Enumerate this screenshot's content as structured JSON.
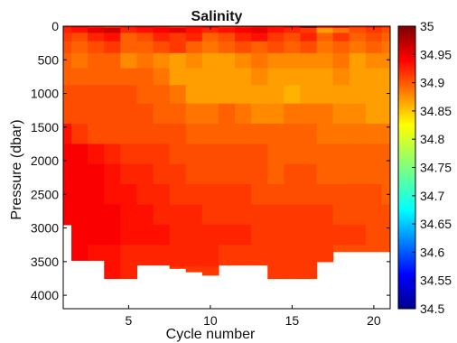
{
  "chart_data": {
    "type": "heatmap",
    "title": "Salinity",
    "xlabel": "Cycle number",
    "ylabel": "Pressure (dbar)",
    "xlim": [
      1,
      21
    ],
    "ylim": [
      4200,
      0
    ],
    "y_reversed": true,
    "x_ticks": [
      5,
      10,
      15,
      20
    ],
    "x_tick_labels": [
      "5",
      "10",
      "15",
      "20"
    ],
    "y_ticks": [
      0,
      500,
      1000,
      1500,
      2000,
      2500,
      3000,
      3500,
      4000
    ],
    "y_tick_labels": [
      "0",
      "500",
      "1000",
      "1500",
      "2000",
      "2500",
      "3000",
      "3500",
      "4000"
    ],
    "colorbar": {
      "min": 34.5,
      "max": 35,
      "ticks": [
        35,
        34.95,
        34.9,
        34.85,
        34.8,
        34.75,
        34.7,
        34.65,
        34.6,
        34.55,
        34.5
      ],
      "tick_labels": [
        "35",
        "34.95",
        "34.9",
        "34.85",
        "34.8",
        "34.75",
        "34.7",
        "34.65",
        "34.6",
        "34.55",
        "34.5"
      ],
      "colormap": "jet"
    },
    "cycles": [
      1,
      2,
      3,
      4,
      5,
      6,
      7,
      8,
      9,
      10,
      11,
      12,
      13,
      14,
      15,
      16,
      17,
      18,
      19,
      20,
      21
    ],
    "max_pressure": [
      2950,
      3480,
      3480,
      3750,
      3750,
      3550,
      3550,
      3600,
      3650,
      3700,
      3550,
      3550,
      3550,
      3750,
      3750,
      3750,
      3500,
      3350,
      3350,
      3350,
      3350
    ],
    "pressure_levels": [
      0,
      50,
      150,
      300,
      500,
      750,
      1000,
      1300,
      1600,
      1900,
      2200,
      2500,
      2800,
      3100,
      3400,
      3750
    ],
    "salinity": [
      [
        34.93,
        34.94,
        34.93,
        34.92,
        34.93,
        34.94,
        34.93,
        34.92,
        34.93,
        34.94,
        34.92,
        34.93,
        34.94,
        34.93,
        34.94,
        35.0,
        34.93,
        34.94,
        34.92,
        34.93,
        34.92
      ],
      [
        34.92,
        34.93,
        34.95,
        34.96,
        34.92,
        34.93,
        34.94,
        34.95,
        34.93,
        34.92,
        34.93,
        34.94,
        34.95,
        34.93,
        34.92,
        34.91,
        34.86,
        34.88,
        34.9,
        34.91,
        34.9
      ],
      [
        34.91,
        34.9,
        34.92,
        34.93,
        34.89,
        34.9,
        34.92,
        34.91,
        34.92,
        34.89,
        34.9,
        34.92,
        34.93,
        34.91,
        34.9,
        34.92,
        34.89,
        34.91,
        34.89,
        34.9,
        34.89
      ],
      [
        34.9,
        34.89,
        34.9,
        34.91,
        34.89,
        34.89,
        34.9,
        34.91,
        34.89,
        34.88,
        34.89,
        34.9,
        34.89,
        34.9,
        34.89,
        34.9,
        34.88,
        34.89,
        34.88,
        34.89,
        34.88
      ],
      [
        34.89,
        34.88,
        34.89,
        34.89,
        34.87,
        34.88,
        34.87,
        34.86,
        34.87,
        34.86,
        34.86,
        34.87,
        34.88,
        34.87,
        34.87,
        34.87,
        34.87,
        34.88,
        34.86,
        34.87,
        34.87
      ],
      [
        34.89,
        34.89,
        34.89,
        34.89,
        34.89,
        34.89,
        34.88,
        34.86,
        34.86,
        34.86,
        34.86,
        34.86,
        34.87,
        34.86,
        34.86,
        34.86,
        34.86,
        34.87,
        34.86,
        34.86,
        34.86
      ],
      [
        34.9,
        34.9,
        34.9,
        34.9,
        34.9,
        34.89,
        34.89,
        34.88,
        34.86,
        34.86,
        34.86,
        34.86,
        34.86,
        34.86,
        34.85,
        34.86,
        34.86,
        34.86,
        34.86,
        34.86,
        34.86
      ],
      [
        34.9,
        34.9,
        34.9,
        34.9,
        34.9,
        34.9,
        34.89,
        34.89,
        34.88,
        34.88,
        34.89,
        34.88,
        34.87,
        34.87,
        34.88,
        34.88,
        34.88,
        34.87,
        34.87,
        34.86,
        34.86
      ],
      [
        34.93,
        34.91,
        34.9,
        34.9,
        34.9,
        34.9,
        34.9,
        34.9,
        34.89,
        34.89,
        34.89,
        34.89,
        34.89,
        34.89,
        34.89,
        34.89,
        34.88,
        34.88,
        34.88,
        34.88,
        34.88
      ],
      [
        34.94,
        34.94,
        34.93,
        34.92,
        34.91,
        34.91,
        34.91,
        34.9,
        34.9,
        34.9,
        34.9,
        34.9,
        34.9,
        34.89,
        34.89,
        34.89,
        34.89,
        34.89,
        34.89,
        34.89,
        34.89
      ],
      [
        34.94,
        34.94,
        34.94,
        34.93,
        34.92,
        34.92,
        34.91,
        34.91,
        34.9,
        34.9,
        34.9,
        34.9,
        34.9,
        34.89,
        34.9,
        34.9,
        34.89,
        34.89,
        34.89,
        34.89,
        34.89
      ],
      [
        34.94,
        34.94,
        34.94,
        34.93,
        34.93,
        34.92,
        34.92,
        34.91,
        34.91,
        34.91,
        34.91,
        34.91,
        34.9,
        34.9,
        34.9,
        34.9,
        34.9,
        34.9,
        34.9,
        34.9,
        34.89
      ],
      [
        34.94,
        34.94,
        34.94,
        34.94,
        34.93,
        34.93,
        34.92,
        34.92,
        34.92,
        34.91,
        34.91,
        34.91,
        34.91,
        34.91,
        34.91,
        34.91,
        34.91,
        34.9,
        34.9,
        34.9,
        34.9
      ],
      [
        34.94,
        34.94,
        34.94,
        34.94,
        34.93,
        34.93,
        34.93,
        34.92,
        34.92,
        34.92,
        34.92,
        34.92,
        34.91,
        34.91,
        34.91,
        34.91,
        34.91,
        34.91,
        34.91,
        34.9,
        34.9
      ],
      [
        34.94,
        34.94,
        34.93,
        34.93,
        34.92,
        34.92,
        34.92,
        34.92,
        34.92,
        34.92,
        34.91,
        34.91,
        34.91,
        34.91,
        34.91,
        34.91,
        34.91,
        34.9,
        34.9,
        34.9,
        34.9
      ],
      [
        34.93,
        34.93,
        34.93,
        34.93,
        34.92,
        34.92,
        34.91,
        34.91,
        34.91,
        34.91,
        34.91,
        34.91,
        34.91,
        34.91,
        34.91,
        34.91,
        34.91,
        34.9,
        34.9,
        34.9,
        34.9
      ]
    ]
  }
}
